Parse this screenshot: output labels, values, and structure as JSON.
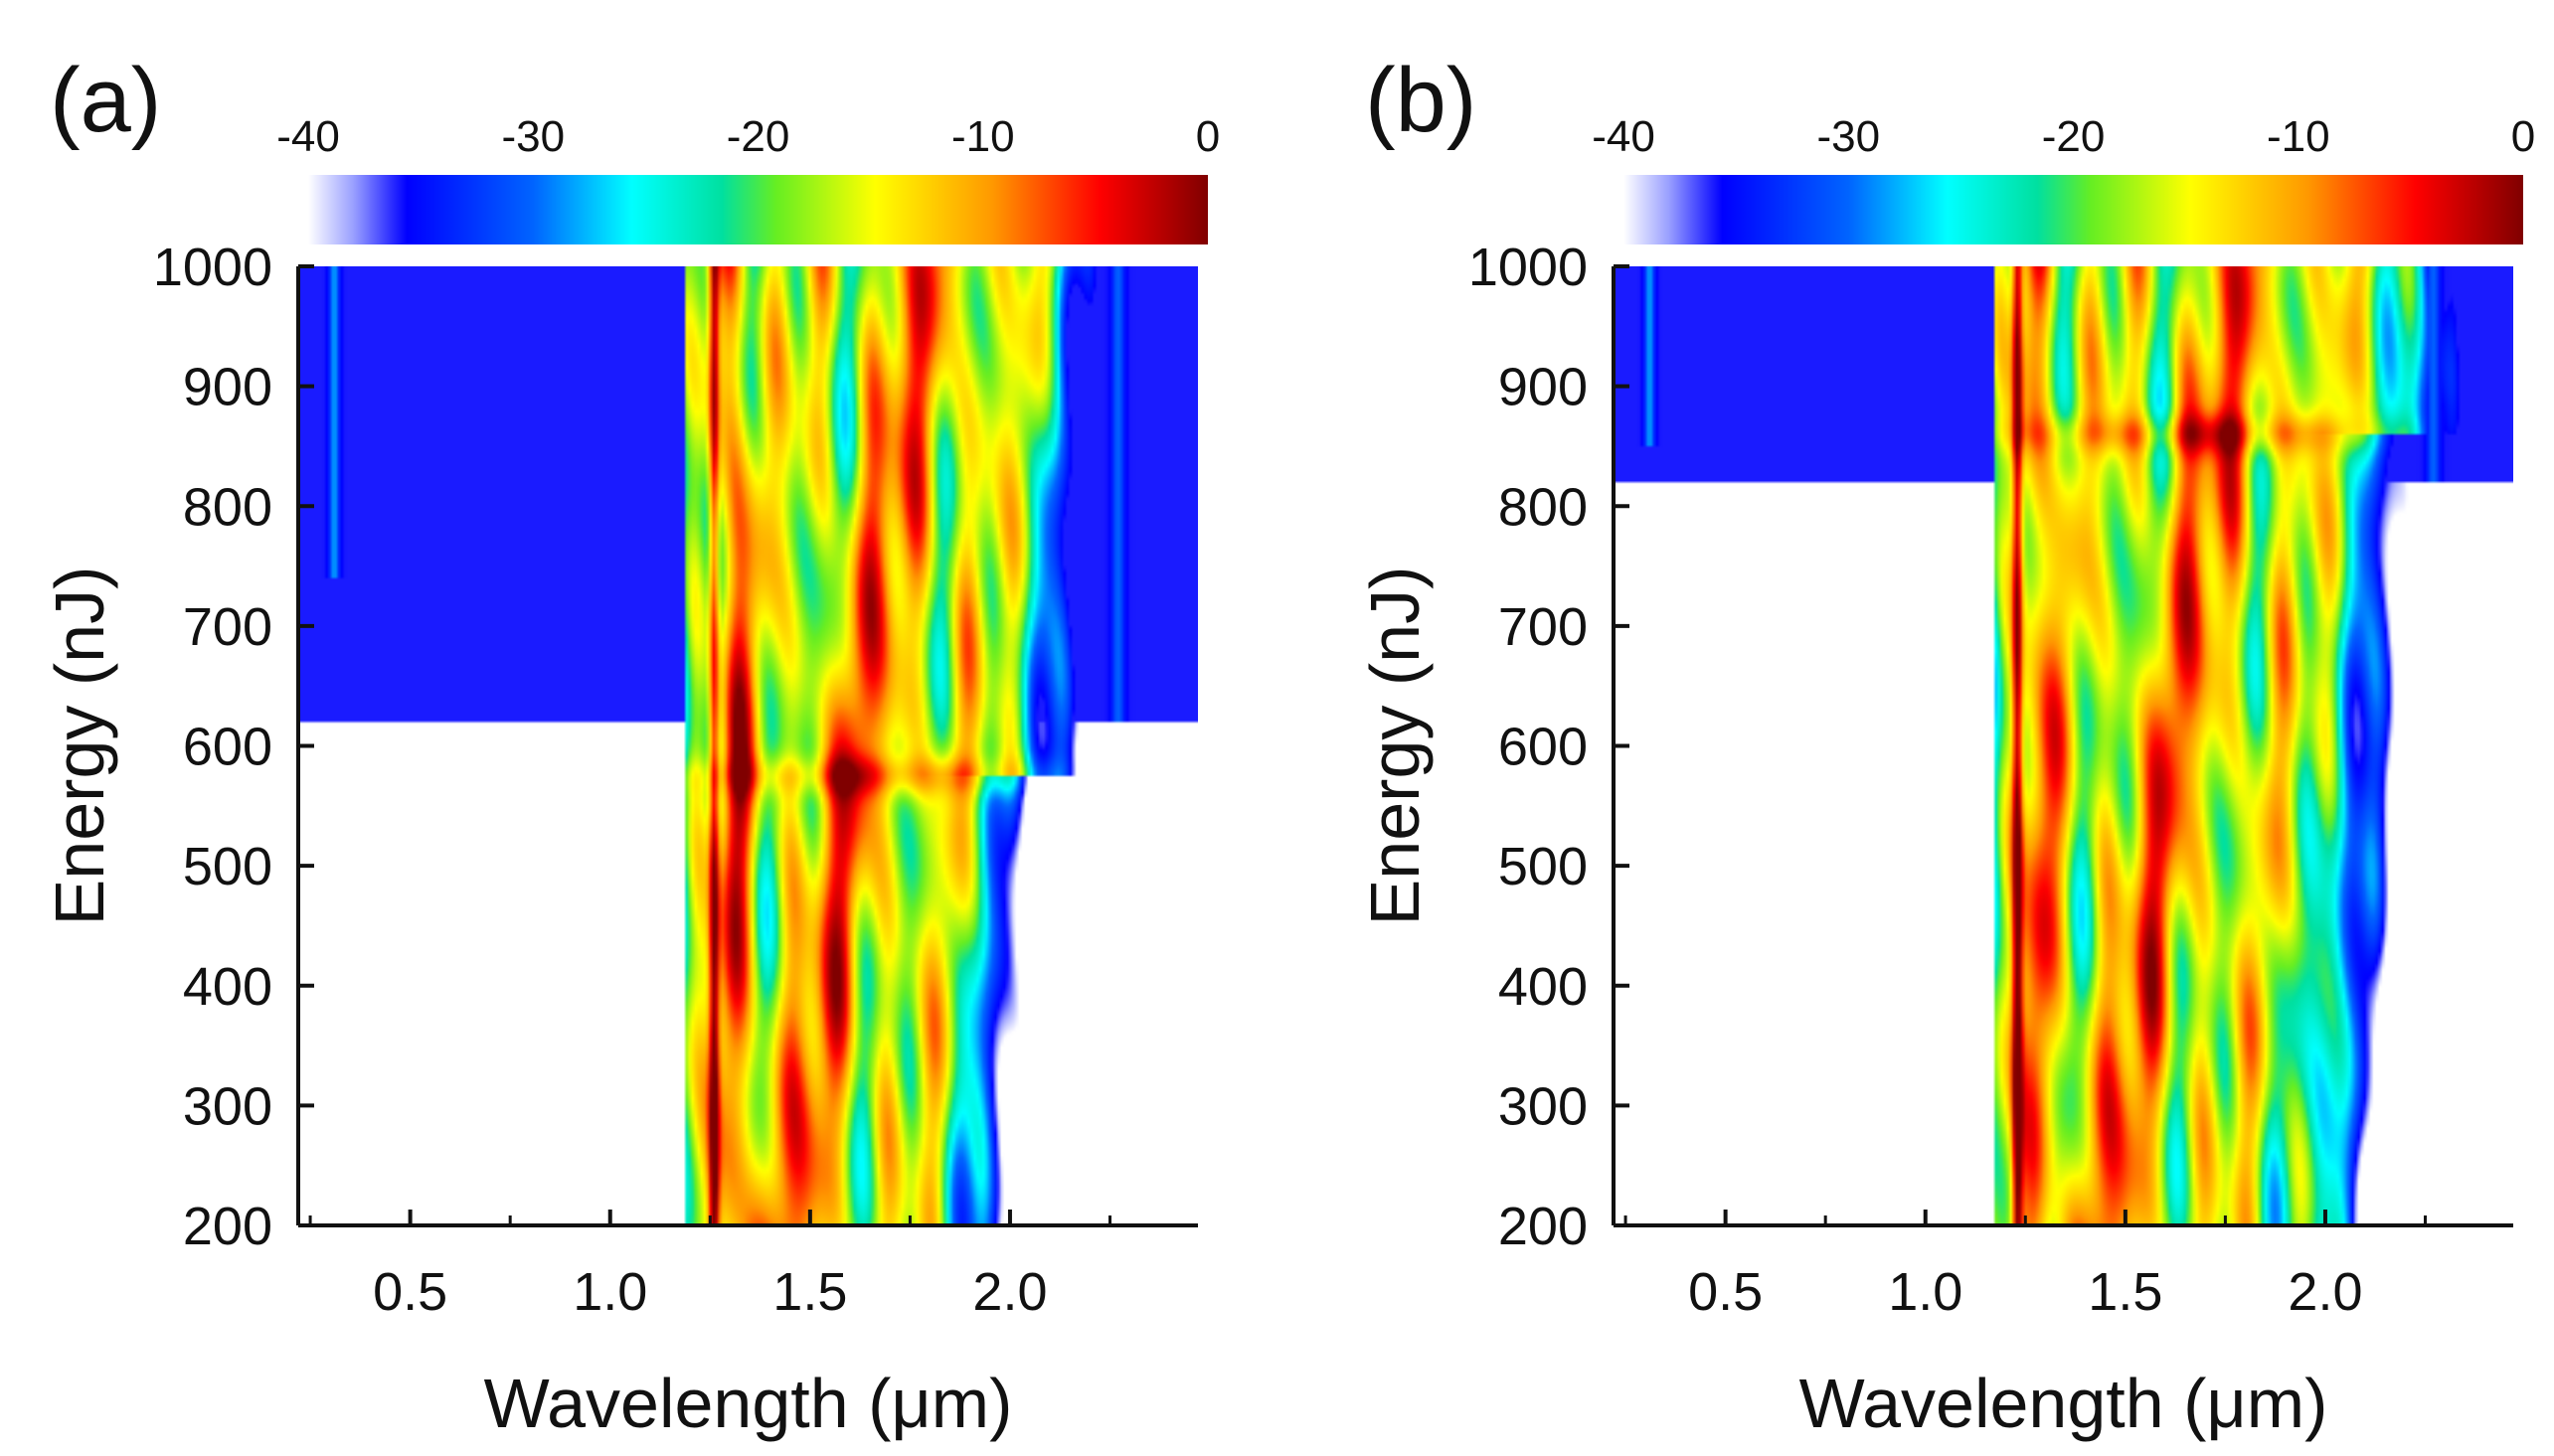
{
  "chart_data": [
    {
      "type": "heatmap",
      "panel_label": "(a)",
      "xlabel": "Wavelength (μm)",
      "ylabel": "Energy (nJ)",
      "xlim": [
        0.22,
        2.47
      ],
      "ylim": [
        200,
        1000
      ],
      "xticks": [
        0.5,
        1.0,
        1.5,
        2.0
      ],
      "xtick_labels": [
        "0.5",
        "1.0",
        "1.5",
        "2.0"
      ],
      "xminor_ticks": [
        0.25,
        0.75,
        1.25,
        1.75,
        2.25
      ],
      "yticks": [
        200,
        300,
        400,
        500,
        600,
        700,
        800,
        900,
        1000
      ],
      "ytick_labels": [
        "200",
        "300",
        "400",
        "500",
        "600",
        "700",
        "800",
        "900",
        "1000"
      ],
      "colorbar": {
        "range": [
          -40,
          0
        ],
        "ticks": [
          -40,
          -30,
          -20,
          -10,
          0
        ],
        "tick_labels": [
          "-40",
          "-30",
          "-20",
          "-10",
          "0"
        ],
        "placement": "top"
      },
      "features": {
        "uv_band": {
          "x": 0.31,
          "ymin": 740,
          "ymax": 1000
        },
        "pump_line": {
          "x": 1.26
        },
        "main_band": {
          "xmin": 1.19,
          "xmax": 2.2
        },
        "transition_energy": 575,
        "ir_tail": {
          "x": 2.27,
          "ymin": 620,
          "ymax": 1000
        }
      }
    },
    {
      "type": "heatmap",
      "panel_label": "(b)",
      "xlabel": "Wavelength (μm)",
      "ylabel": "Energy (nJ)",
      "xlim": [
        0.22,
        2.47
      ],
      "ylim": [
        200,
        1000
      ],
      "xticks": [
        0.5,
        1.0,
        1.5,
        2.0
      ],
      "xtick_labels": [
        "0.5",
        "1.0",
        "1.5",
        "2.0"
      ],
      "xminor_ticks": [
        0.25,
        0.75,
        1.25,
        1.75,
        2.25
      ],
      "yticks": [
        200,
        300,
        400,
        500,
        600,
        700,
        800,
        900,
        1000
      ],
      "ytick_labels": [
        "200",
        "300",
        "400",
        "500",
        "600",
        "700",
        "800",
        "900",
        "1000"
      ],
      "colorbar": {
        "range": [
          -40,
          0
        ],
        "ticks": [
          -40,
          -30,
          -20,
          -10,
          0
        ],
        "tick_labels": [
          "-40",
          "-30",
          "-20",
          "-10",
          "0"
        ],
        "placement": "top"
      },
      "features": {
        "uv_band": {
          "x": 0.31,
          "ymin": 850,
          "ymax": 1000
        },
        "pump_line": {
          "x": 1.23
        },
        "main_band": {
          "xmin": 1.17,
          "xmax": 2.3
        },
        "transition_energy": 860,
        "ir_tail": {
          "x": 2.27,
          "ymin": 820,
          "ymax": 1000
        }
      }
    }
  ]
}
